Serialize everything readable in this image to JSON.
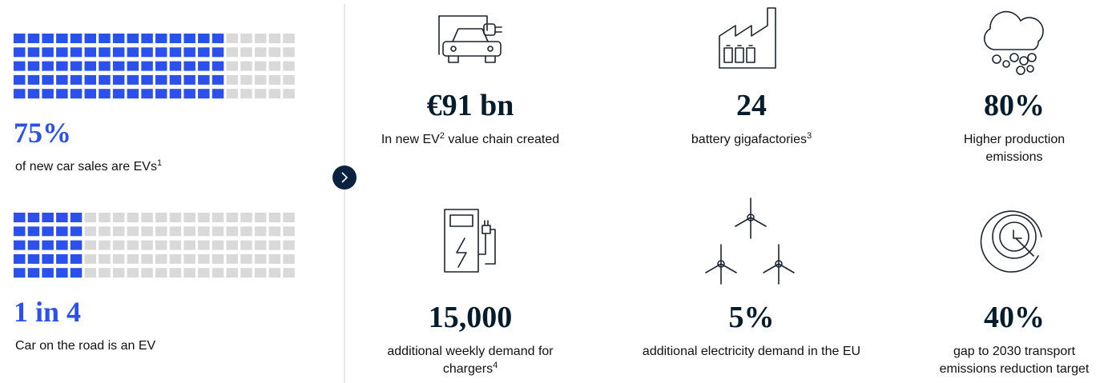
{
  "left_stats": [
    {
      "value_label": "75%",
      "value": 75,
      "caption": [
        {
          "text": "of new car sales are EVs"
        },
        {
          "sup": "1"
        }
      ]
    },
    {
      "value_label": "1 in 4",
      "value": 25,
      "caption": [
        {
          "text": "Car on the road is an EV"
        }
      ]
    }
  ],
  "tiles": [
    {
      "value_label": "€91 bn",
      "caption_lines": [
        [
          {
            "text": "In new EV"
          },
          {
            "sup": "2"
          },
          {
            "text": " value chain created"
          }
        ]
      ]
    },
    {
      "value_label": "24",
      "caption_lines": [
        [
          {
            "text": "battery gigafactories"
          },
          {
            "sup": "3"
          }
        ]
      ]
    },
    {
      "value_label": "80%",
      "caption_lines": [
        [
          {
            "text": "Higher production"
          }
        ],
        [
          {
            "text": "emissions"
          }
        ]
      ]
    },
    {
      "value_label": "15,000",
      "caption_lines": [
        [
          {
            "text": "additional weekly demand for"
          }
        ],
        [
          {
            "text": "chargers"
          },
          {
            "sup": "4"
          }
        ]
      ]
    },
    {
      "value_label": "5%",
      "caption_lines": [
        [
          {
            "text": "additional electricity demand in the EU"
          }
        ]
      ]
    },
    {
      "value_label": "40%",
      "caption_lines": [
        [
          {
            "text": "gap to 2030 transport"
          }
        ],
        [
          {
            "text": "emissions reduction target"
          }
        ]
      ]
    }
  ]
}
